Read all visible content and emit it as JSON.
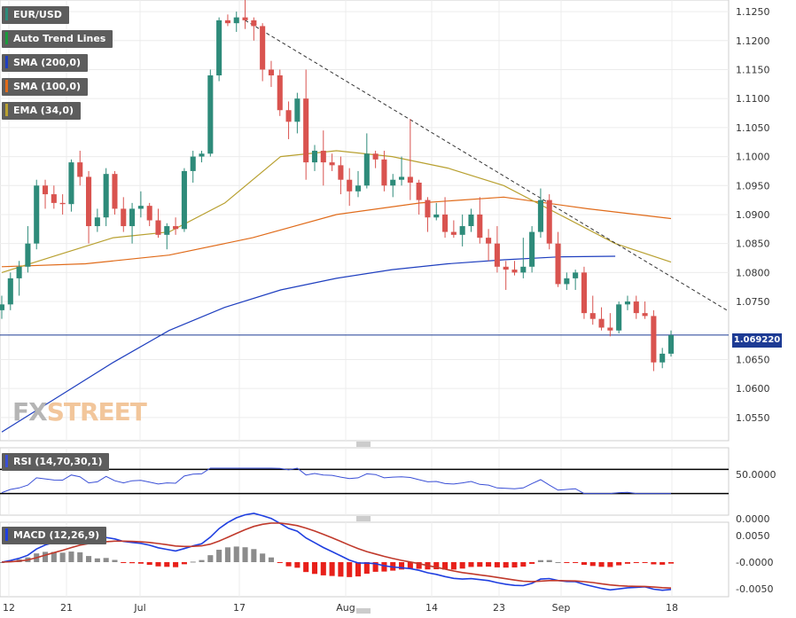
{
  "legend": {
    "symbol": "EUR/USD",
    "trend": "Auto Trend Lines",
    "sma200": "SMA (200,0)",
    "sma100": "SMA (100,0)",
    "ema34": "EMA (34,0)"
  },
  "rsi_label": "RSI (14,70,30,1)",
  "macd_label": "MACD (12,26,9)",
  "price_tag": "1.069220",
  "logo": {
    "fx": "FX",
    "street": "STREET"
  },
  "colors": {
    "up": "#2e8b7a",
    "down": "#d9534f",
    "sma200": "#1f3fbf",
    "sma100": "#e06b1a",
    "ema34": "#b8a030",
    "rsi": "#3a4fd6",
    "macd": "#1f3fe0",
    "signal": "#c0392b",
    "hist_pos": "#8c8c8c",
    "hist_neg": "#e8201a"
  },
  "chart_data": {
    "type": "candlestick",
    "x_labels": [
      "12",
      "21",
      "Jul",
      "17",
      "Aug",
      "14",
      "23",
      "Sep",
      "18"
    ],
    "y_ticks": [
      "1.1250",
      "1.1200",
      "1.1150",
      "1.1100",
      "1.1050",
      "1.1000",
      "1.0950",
      "1.0900",
      "1.0850",
      "1.0800",
      "1.0750",
      "1.0650",
      "1.0600",
      "1.0550"
    ],
    "ylim": [
      1.051,
      1.127
    ],
    "candles": [
      [
        1.0735,
        1.076,
        1.072,
        1.0745
      ],
      [
        1.0745,
        1.08,
        1.0735,
        1.079
      ],
      [
        1.079,
        1.082,
        1.076,
        1.081
      ],
      [
        1.081,
        1.088,
        1.08,
        1.085
      ],
      [
        1.085,
        1.096,
        1.084,
        1.095
      ],
      [
        1.095,
        1.096,
        1.091,
        1.0935
      ],
      [
        1.0935,
        1.095,
        1.091,
        1.092
      ],
      [
        1.092,
        1.0935,
        1.09,
        1.0918
      ],
      [
        1.0918,
        1.0995,
        1.0905,
        1.099
      ],
      [
        1.099,
        1.101,
        1.095,
        1.0965
      ],
      [
        1.0965,
        1.0975,
        1.085,
        1.088
      ],
      [
        1.088,
        1.091,
        1.087,
        1.0895
      ],
      [
        1.0895,
        1.098,
        1.088,
        1.097
      ],
      [
        1.097,
        1.0975,
        1.09,
        1.091
      ],
      [
        1.091,
        1.093,
        1.087,
        1.088
      ],
      [
        1.088,
        1.092,
        1.085,
        1.091
      ],
      [
        1.091,
        1.094,
        1.0895,
        1.0915
      ],
      [
        1.0915,
        1.092,
        1.088,
        1.089
      ],
      [
        1.089,
        1.091,
        1.086,
        1.0865
      ],
      [
        1.0865,
        1.0885,
        1.084,
        1.088
      ],
      [
        1.088,
        1.0895,
        1.0865,
        1.0875
      ],
      [
        1.0875,
        1.098,
        1.087,
        1.0975
      ],
      [
        1.0975,
        1.101,
        1.0955,
        1.1
      ],
      [
        1.1,
        1.101,
        1.099,
        1.1005
      ],
      [
        1.1005,
        1.115,
        1.1,
        1.114
      ],
      [
        1.114,
        1.124,
        1.113,
        1.1235
      ],
      [
        1.1235,
        1.1245,
        1.1225,
        1.123
      ],
      [
        1.123,
        1.125,
        1.1215,
        1.124
      ],
      [
        1.124,
        1.1275,
        1.122,
        1.1235
      ],
      [
        1.1235,
        1.124,
        1.12,
        1.1225
      ],
      [
        1.1225,
        1.123,
        1.113,
        1.115
      ],
      [
        1.115,
        1.1165,
        1.112,
        1.114
      ],
      [
        1.114,
        1.115,
        1.107,
        1.108
      ],
      [
        1.108,
        1.1095,
        1.103,
        1.106
      ],
      [
        1.106,
        1.111,
        1.104,
        1.11
      ],
      [
        1.11,
        1.115,
        1.096,
        1.099
      ],
      [
        1.099,
        1.102,
        1.0975,
        1.101
      ],
      [
        1.101,
        1.1045,
        1.095,
        1.099
      ],
      [
        1.099,
        1.1005,
        1.0975,
        1.0985
      ],
      [
        1.0985,
        1.1,
        1.0935,
        1.096
      ],
      [
        1.096,
        1.098,
        1.0915,
        1.094
      ],
      [
        1.094,
        1.0975,
        1.093,
        1.095
      ],
      [
        1.095,
        1.104,
        1.0945,
        1.1005
      ],
      [
        1.1005,
        1.101,
        1.098,
        1.0995
      ],
      [
        1.0995,
        1.101,
        1.094,
        1.095
      ],
      [
        1.095,
        1.097,
        1.093,
        1.096
      ],
      [
        1.096,
        1.1,
        1.095,
        1.0965
      ],
      [
        1.0965,
        1.1065,
        1.0925,
        1.0955
      ],
      [
        1.0955,
        1.096,
        1.09,
        1.0925
      ],
      [
        1.0925,
        1.093,
        1.087,
        1.0895
      ],
      [
        1.0895,
        1.092,
        1.089,
        1.09
      ],
      [
        1.09,
        1.093,
        1.086,
        1.087
      ],
      [
        1.087,
        1.089,
        1.086,
        1.0865
      ],
      [
        1.0865,
        1.09,
        1.0845,
        1.088
      ],
      [
        1.088,
        1.091,
        1.087,
        1.09
      ],
      [
        1.09,
        1.093,
        1.085,
        1.086
      ],
      [
        1.086,
        1.0875,
        1.082,
        1.085
      ],
      [
        1.085,
        1.088,
        1.08,
        1.081
      ],
      [
        1.081,
        1.082,
        1.077,
        1.0805
      ],
      [
        1.0805,
        1.082,
        1.0795,
        1.08
      ],
      [
        1.08,
        1.086,
        1.079,
        1.081
      ],
      [
        1.081,
        1.088,
        1.08,
        1.087
      ],
      [
        1.087,
        1.0945,
        1.086,
        1.0925
      ],
      [
        1.0925,
        1.0935,
        1.084,
        1.085
      ],
      [
        1.085,
        1.087,
        1.0775,
        1.078
      ],
      [
        1.078,
        1.08,
        1.077,
        1.079
      ],
      [
        1.079,
        1.0805,
        1.077,
        1.08
      ],
      [
        1.08,
        1.081,
        1.072,
        1.073
      ],
      [
        1.073,
        1.076,
        1.071,
        1.072
      ],
      [
        1.072,
        1.074,
        1.07,
        1.0705
      ],
      [
        1.0705,
        1.073,
        1.069,
        1.07
      ],
      [
        1.07,
        1.075,
        1.0695,
        1.0745
      ],
      [
        1.0745,
        1.076,
        1.0735,
        1.075
      ],
      [
        1.075,
        1.076,
        1.072,
        1.073
      ],
      [
        1.073,
        1.075,
        1.072,
        1.0725
      ],
      [
        1.0725,
        1.0735,
        1.063,
        1.0645
      ],
      [
        1.0645,
        1.067,
        1.0635,
        1.066
      ],
      [
        1.066,
        1.07,
        1.0655,
        1.0692
      ]
    ],
    "sma200": [
      [
        0,
        1.0525
      ],
      [
        20,
        1.0585
      ],
      [
        40,
        1.0645
      ],
      [
        60,
        1.07
      ],
      [
        80,
        1.074
      ],
      [
        100,
        1.077
      ],
      [
        120,
        1.079
      ],
      [
        140,
        1.0805
      ],
      [
        160,
        1.0815
      ],
      [
        180,
        1.0822
      ],
      [
        200,
        1.0827
      ],
      [
        220,
        1.0828
      ]
    ],
    "sma100": [
      [
        0,
        1.081
      ],
      [
        30,
        1.0815
      ],
      [
        60,
        1.083
      ],
      [
        90,
        1.086
      ],
      [
        120,
        1.09
      ],
      [
        150,
        1.092
      ],
      [
        180,
        1.093
      ],
      [
        210,
        1.091
      ],
      [
        240,
        1.0893
      ]
    ],
    "ema34": [
      [
        0,
        1.08
      ],
      [
        20,
        1.083
      ],
      [
        40,
        1.086
      ],
      [
        60,
        1.087
      ],
      [
        80,
        1.092
      ],
      [
        100,
        1.1
      ],
      [
        120,
        1.101
      ],
      [
        140,
        1.1
      ],
      [
        160,
        1.098
      ],
      [
        180,
        1.095
      ],
      [
        200,
        1.09
      ],
      [
        220,
        1.085
      ],
      [
        240,
        1.0818
      ]
    ],
    "trendline": [
      [
        1.1235,
        1.1235
      ],
      [
        1.0735,
        1.0735
      ]
    ],
    "price_line": 1.06922,
    "rsi": {
      "ticks": [
        "50.0000",
        "0.0000"
      ],
      "ylim": [
        0,
        100
      ]
    },
    "macd": {
      "ticks": [
        "0.0050",
        "-0.0000",
        "-0.0050"
      ],
      "ylim": [
        -0.0065,
        0.0075
      ]
    }
  }
}
